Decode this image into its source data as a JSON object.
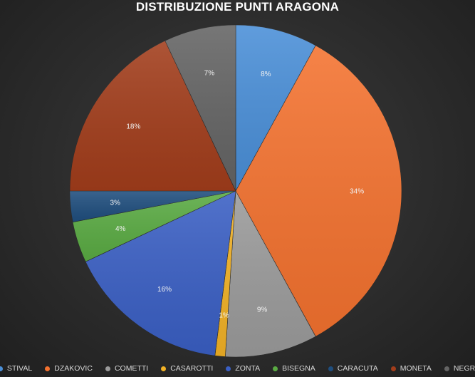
{
  "chart_data": {
    "type": "pie",
    "title": "DISTRIBUZIONE PUNTI ARAGONA",
    "categories": [
      "STIVAL",
      "DZAKOVIC",
      "COMETTI",
      "CASAROTTI",
      "ZONTA",
      "BISEGNA",
      "CARACUTA",
      "MONETA",
      "NEGRI"
    ],
    "values": [
      8,
      34,
      9,
      1,
      16,
      4,
      3,
      18,
      7
    ],
    "labels": [
      "8%",
      "34%",
      "9%",
      "1%",
      "16%",
      "4%",
      "3%",
      "18%",
      "7%"
    ],
    "colors": [
      "#4a8fd8",
      "#f4722f",
      "#9b9b9b",
      "#f2b226",
      "#3a5fc4",
      "#5aab43",
      "#1f4e7e",
      "#a23d1b",
      "#646464"
    ],
    "legend_position": "bottom"
  }
}
